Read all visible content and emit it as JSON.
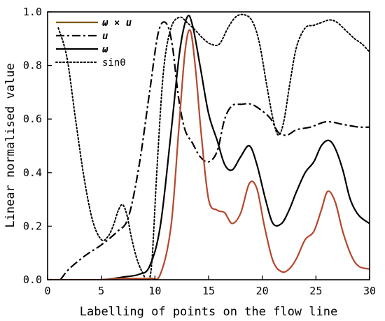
{
  "chart_data": {
    "type": "line",
    "xlabel": "Labelling of points on the flow line",
    "ylabel": "Linear normalised value",
    "xlim": [
      0,
      30
    ],
    "ylim": [
      0.0,
      1.0
    ],
    "xticks": [
      0,
      5,
      10,
      15,
      20,
      25,
      30
    ],
    "yticks": [
      "0.0",
      "0.2",
      "0.4",
      "0.6",
      "0.8",
      "1.0"
    ],
    "grid": false,
    "legend_position": "top-left",
    "series": [
      {
        "name": "ω × u",
        "style": "solid",
        "color": "#b5472e",
        "legend_color": "#7a5a10",
        "x": [
          0,
          5,
          7,
          9.5,
          10.5,
          11.5,
          12.2,
          12.8,
          13.3,
          13.8,
          14.3,
          15.0,
          15.8,
          16.5,
          17.2,
          18.0,
          18.8,
          19.5,
          20.2,
          21.0,
          21.8,
          22.5,
          23.2,
          24.0,
          24.8,
          25.5,
          26.1,
          26.8,
          27.5,
          28.3,
          29.0,
          30.0
        ],
        "y": [
          0.0,
          0.0,
          0.005,
          0.005,
          0.02,
          0.2,
          0.55,
          0.85,
          0.93,
          0.78,
          0.55,
          0.3,
          0.26,
          0.25,
          0.21,
          0.25,
          0.36,
          0.34,
          0.2,
          0.07,
          0.03,
          0.04,
          0.08,
          0.15,
          0.18,
          0.26,
          0.33,
          0.29,
          0.18,
          0.09,
          0.05,
          0.04
        ]
      },
      {
        "name": "u",
        "style": "dashdot",
        "color": "#000000",
        "x": [
          1.2,
          2,
          3.5,
          5,
          6.5,
          7.5,
          8.5,
          9.5,
          10.3,
          11.0,
          11.6,
          12.2,
          12.8,
          13.5,
          14.2,
          15.0,
          15.8,
          16.5,
          17.2,
          18.0,
          19.0,
          20.0,
          20.8,
          21.5,
          22.3,
          23.2,
          24.5,
          26.0,
          27.5,
          29.0,
          30.0
        ],
        "y": [
          0.0,
          0.04,
          0.09,
          0.13,
          0.18,
          0.23,
          0.42,
          0.7,
          0.92,
          0.96,
          0.88,
          0.68,
          0.56,
          0.51,
          0.46,
          0.44,
          0.48,
          0.6,
          0.65,
          0.655,
          0.655,
          0.63,
          0.6,
          0.55,
          0.54,
          0.56,
          0.57,
          0.59,
          0.58,
          0.57,
          0.57
        ]
      },
      {
        "name": "ω",
        "style": "solid",
        "color": "#000000",
        "x": [
          0,
          5,
          7,
          8.5,
          9.5,
          10.5,
          11.5,
          12.3,
          13.0,
          13.5,
          14.2,
          15.0,
          15.8,
          16.5,
          17.2,
          18.0,
          18.8,
          19.5,
          20.3,
          21.0,
          21.8,
          22.5,
          23.2,
          24.0,
          24.8,
          25.5,
          26.2,
          26.8,
          27.5,
          28.2,
          29.0,
          30.0
        ],
        "y": [
          0.0,
          0.0,
          0.01,
          0.02,
          0.05,
          0.2,
          0.55,
          0.85,
          0.98,
          0.95,
          0.8,
          0.62,
          0.52,
          0.43,
          0.41,
          0.46,
          0.5,
          0.43,
          0.3,
          0.21,
          0.21,
          0.26,
          0.33,
          0.4,
          0.44,
          0.5,
          0.52,
          0.49,
          0.41,
          0.3,
          0.24,
          0.21
        ]
      },
      {
        "name": "sinθ",
        "style": "dotted",
        "color": "#000000",
        "x": [
          1,
          1.8,
          2.6,
          3.4,
          4.2,
          5.0,
          5.6,
          6.1,
          6.6,
          7.0,
          7.4,
          7.8,
          8.3,
          8.8,
          9.3,
          9.7,
          10.2,
          10.8,
          11.5,
          12.3,
          13.0,
          13.8,
          14.5,
          15.2,
          16.0,
          16.8,
          17.5,
          18.2,
          19.0,
          19.7,
          20.4,
          21.0,
          21.5,
          22.0,
          22.6,
          23.2,
          24.0,
          24.8,
          25.5,
          26.3,
          27.0,
          27.8,
          28.6,
          29.3,
          30.0
        ],
        "y": [
          0.94,
          0.83,
          0.6,
          0.38,
          0.22,
          0.15,
          0.16,
          0.2,
          0.26,
          0.28,
          0.24,
          0.16,
          0.08,
          0.03,
          0.0,
          0.06,
          0.42,
          0.78,
          0.94,
          0.98,
          0.96,
          0.93,
          0.9,
          0.88,
          0.88,
          0.94,
          0.98,
          0.99,
          0.97,
          0.89,
          0.73,
          0.6,
          0.54,
          0.59,
          0.74,
          0.87,
          0.94,
          0.95,
          0.96,
          0.97,
          0.96,
          0.93,
          0.9,
          0.88,
          0.85
        ]
      }
    ]
  }
}
